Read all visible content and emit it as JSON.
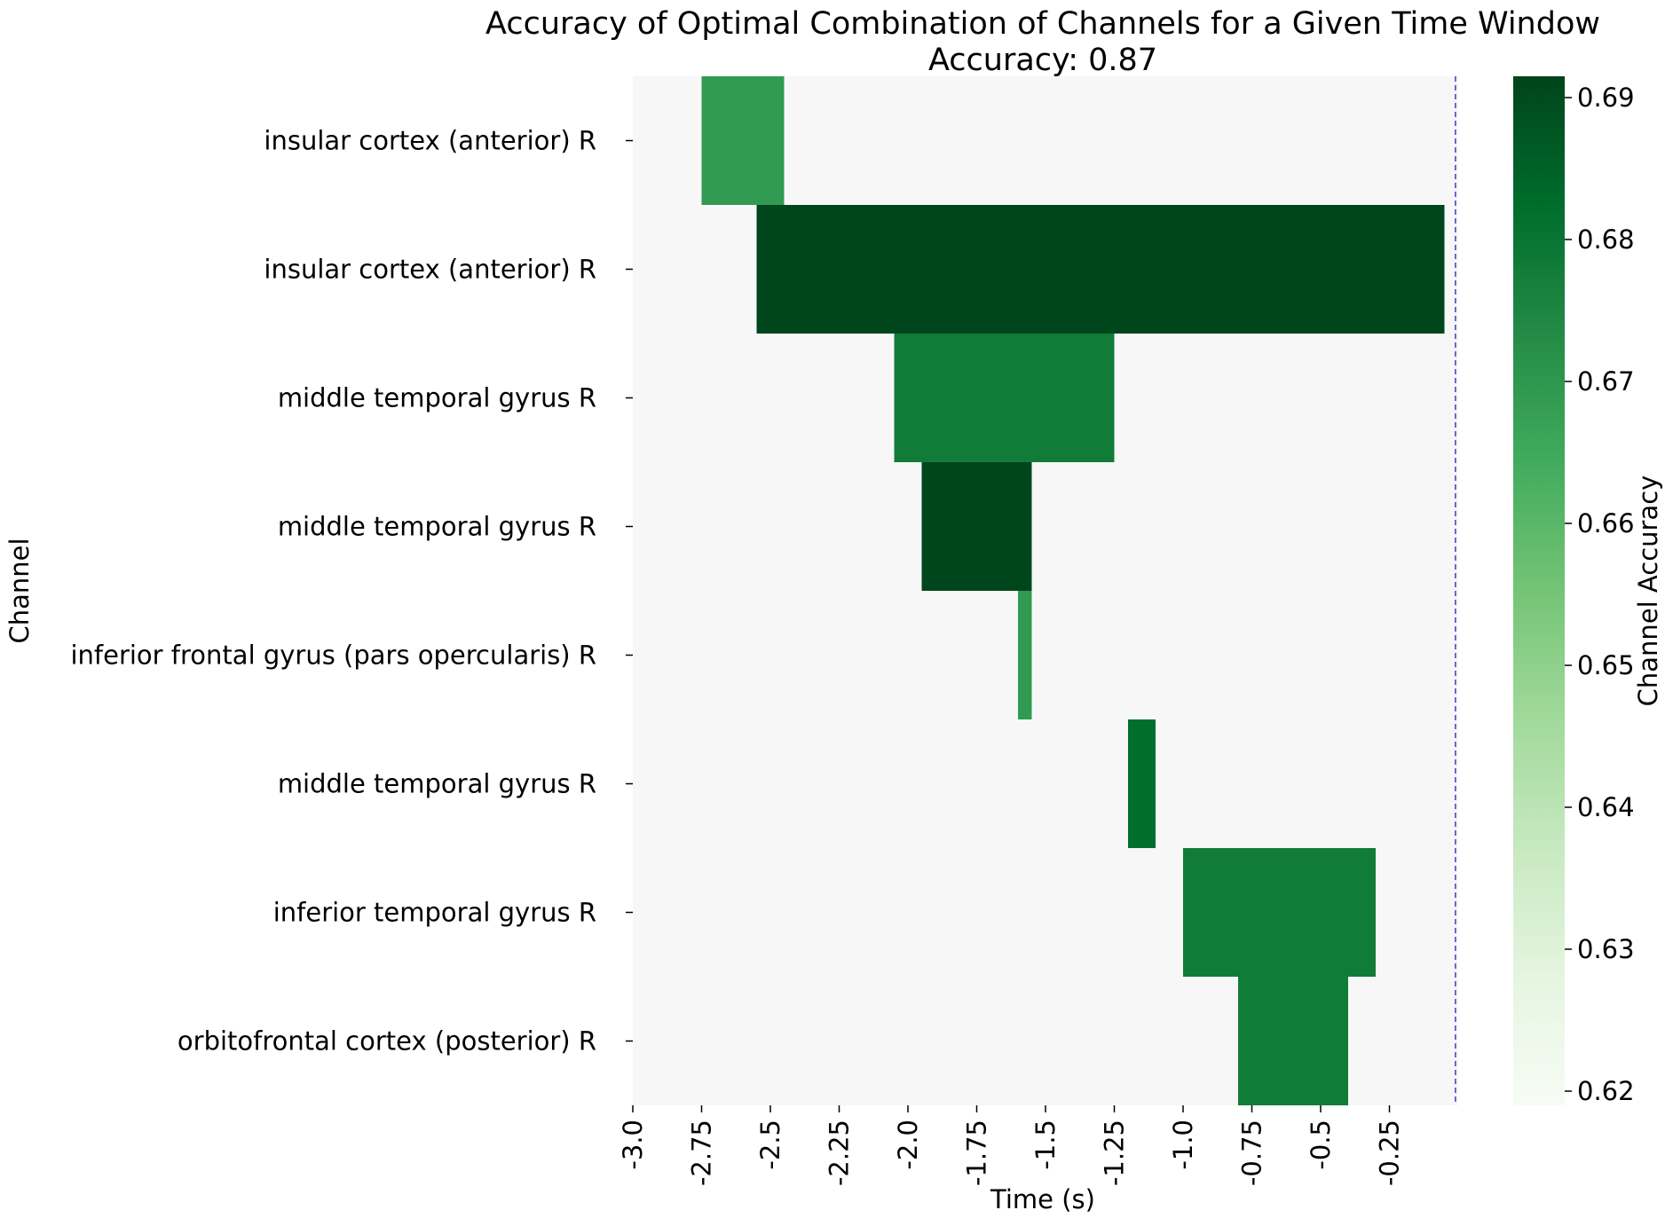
{
  "chart_data": {
    "type": "heatmap",
    "title": "Accuracy of Optimal Combination of Channels for a Given Time Window",
    "subtitle": "Accuracy: 0.87",
    "xlabel": "Time (s)",
    "ylabel": "Channel",
    "colorbar_label": "Channel Accuracy",
    "xlim": [
      -3.0,
      0.0
    ],
    "x_ticks": [
      -3.0,
      -2.75,
      -2.5,
      -2.25,
      -2.0,
      -1.75,
      -1.5,
      -1.25,
      -1.0,
      -0.75,
      -0.5,
      -0.25
    ],
    "x_tick_labels": [
      "-3.0",
      "-2.75",
      "-2.5",
      "-2.25",
      "-2.0",
      "-1.75",
      "-1.5",
      "-1.25",
      "-1.0",
      "-0.75",
      "-0.5",
      "-0.25"
    ],
    "colorbar_range": [
      0.619,
      0.6915
    ],
    "colorbar_ticks": [
      0.62,
      0.63,
      0.64,
      0.65,
      0.66,
      0.67,
      0.68,
      0.69
    ],
    "colorbar_tick_labels": [
      "0.62",
      "0.63",
      "0.64",
      "0.65",
      "0.66",
      "0.67",
      "0.68",
      "0.69"
    ],
    "colormap": "Greens",
    "background_color": "#f7f7f7",
    "reference_line": {
      "x": -0.01,
      "style": "dashed",
      "color": "#3a3acc"
    },
    "channels": [
      "insular cortex (anterior) R",
      "insular cortex (anterior) R",
      "middle temporal gyrus R",
      "middle temporal gyrus R",
      "inferior frontal gyrus (pars opercularis) R",
      "middle temporal gyrus R",
      "inferior temporal gyrus R",
      "orbitofrontal cortex (posterior) R"
    ],
    "windows": [
      {
        "channel_index": 0,
        "start": -2.75,
        "end": -2.45,
        "accuracy": 0.669
      },
      {
        "channel_index": 1,
        "start": -2.55,
        "end": -0.05,
        "accuracy": 0.691
      },
      {
        "channel_index": 2,
        "start": -2.05,
        "end": -1.25,
        "accuracy": 0.678
      },
      {
        "channel_index": 3,
        "start": -1.95,
        "end": -1.55,
        "accuracy": 0.691
      },
      {
        "channel_index": 4,
        "start": -1.6,
        "end": -1.55,
        "accuracy": 0.669
      },
      {
        "channel_index": 5,
        "start": -1.2,
        "end": -1.1,
        "accuracy": 0.682
      },
      {
        "channel_index": 6,
        "start": -1.0,
        "end": -0.3,
        "accuracy": 0.678
      },
      {
        "channel_index": 7,
        "start": -0.8,
        "end": -0.4,
        "accuracy": 0.678
      }
    ]
  }
}
